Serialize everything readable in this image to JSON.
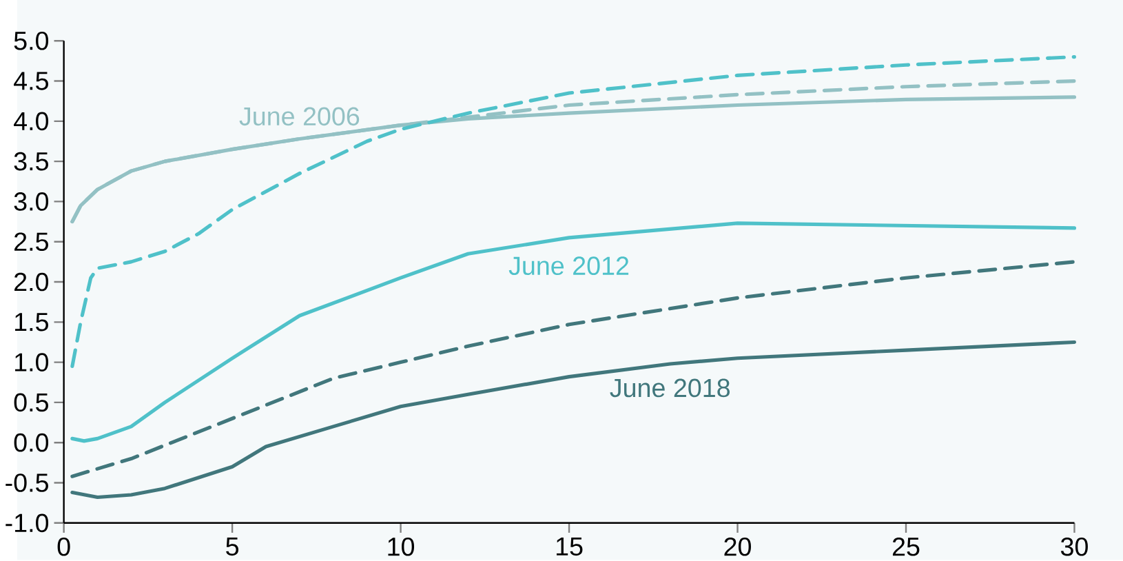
{
  "chart_data": {
    "type": "line",
    "xlim": [
      0,
      30
    ],
    "ylim": [
      -1.0,
      5.0
    ],
    "xticks": [
      0,
      5,
      10,
      15,
      20,
      25,
      30
    ],
    "yticks": [
      {
        "value": -1.0,
        "label": "-1.0"
      },
      {
        "value": -0.5,
        "label": "-0.5"
      },
      {
        "value": 0,
        "label": "0.0"
      },
      {
        "value": 0.5,
        "label": "0.5"
      },
      {
        "value": 1.0,
        "label": "1.0"
      },
      {
        "value": 1.5,
        "label": "1.5"
      },
      {
        "value": 2.0,
        "label": "2.0"
      },
      {
        "value": 2.5,
        "label": "2.5"
      },
      {
        "value": 3.0,
        "label": "3.0"
      },
      {
        "value": 3.5,
        "label": "3.5"
      },
      {
        "value": 4.0,
        "label": "4.0"
      },
      {
        "value": 4.5,
        "label": "4.5"
      },
      {
        "value": 5.0,
        "label": "5.0"
      }
    ],
    "grid": false,
    "legend": false,
    "marker": "none",
    "series": [
      {
        "name": "June 2006",
        "color": "#93c1c4",
        "line_style": "solid",
        "x": [
          0.25,
          0.5,
          1,
          2,
          3,
          5,
          7,
          10,
          12,
          15,
          20,
          25,
          30
        ],
        "values": [
          2.75,
          2.95,
          3.15,
          3.38,
          3.5,
          3.65,
          3.78,
          3.95,
          4.03,
          4.1,
          4.2,
          4.27,
          4.3
        ]
      },
      {
        "color": "#93c1c4",
        "line_style": "dashed",
        "x": [
          0.25,
          0.5,
          1,
          2,
          3,
          5,
          7,
          10,
          12,
          15,
          20,
          25,
          30
        ],
        "values": [
          2.75,
          2.95,
          3.15,
          3.38,
          3.5,
          3.65,
          3.78,
          3.95,
          4.05,
          4.2,
          4.33,
          4.43,
          4.5
        ]
      },
      {
        "name": "June 2012",
        "color": "#4fc1c9",
        "line_style": "solid",
        "x": [
          0.25,
          0.6,
          1,
          2,
          3,
          5,
          7,
          10,
          12,
          15,
          20,
          25,
          30
        ],
        "values": [
          0.05,
          0.02,
          0.05,
          0.2,
          0.5,
          1.05,
          1.58,
          2.05,
          2.35,
          2.55,
          2.73,
          2.7,
          2.67
        ]
      },
      {
        "color": "#4fc1c9",
        "line_style": "dashed",
        "x": [
          0.25,
          0.5,
          0.8,
          1,
          2,
          3,
          4,
          5,
          7,
          9,
          10,
          12,
          15,
          20,
          25,
          30
        ],
        "values": [
          0.95,
          1.5,
          2.05,
          2.17,
          2.25,
          2.38,
          2.6,
          2.9,
          3.35,
          3.75,
          3.9,
          4.1,
          4.35,
          4.57,
          4.7,
          4.8
        ]
      },
      {
        "name": "June 2018",
        "color": "#41777c",
        "line_style": "solid",
        "x": [
          0.25,
          1,
          2,
          3,
          5,
          6,
          8,
          10,
          12,
          15,
          18,
          20,
          25,
          30
        ],
        "values": [
          -0.62,
          -0.68,
          -0.65,
          -0.57,
          -0.3,
          -0.05,
          0.2,
          0.45,
          0.6,
          0.82,
          0.98,
          1.05,
          1.15,
          1.25
        ]
      },
      {
        "color": "#41777c",
        "line_style": "dashed",
        "x": [
          0.25,
          2,
          5,
          8,
          10,
          12,
          15,
          20,
          25,
          30
        ],
        "values": [
          -0.42,
          -0.2,
          0.3,
          0.8,
          1.0,
          1.2,
          1.47,
          1.8,
          2.05,
          2.25
        ]
      }
    ]
  }
}
